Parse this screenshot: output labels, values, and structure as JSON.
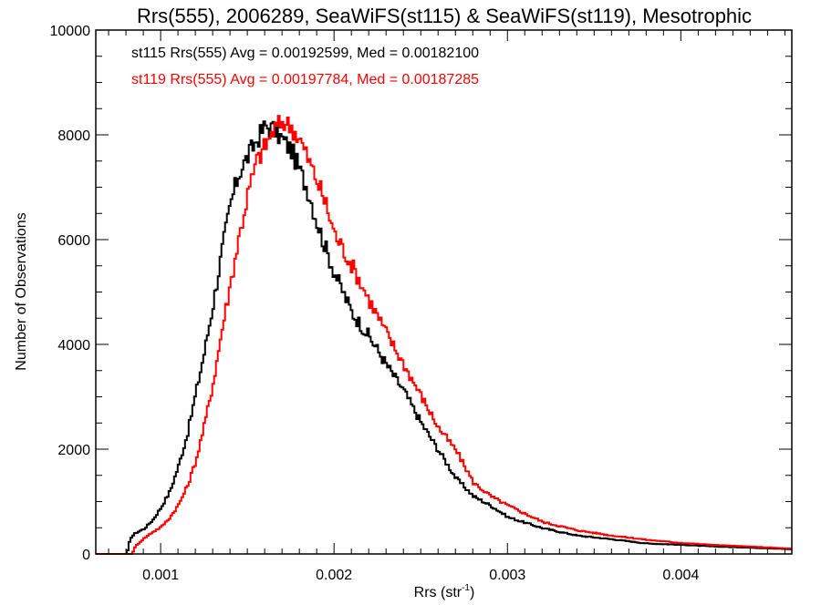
{
  "chart_data": {
    "type": "line",
    "style": "step-histogram",
    "title": "Rrs(555), 2006289, SeaWiFS(st115) & SeaWiFS(st119), Mesotrophic",
    "xlabel": "Rrs (str",
    "xlabel_sup": "-1",
    "xlabel_suffix": ")",
    "ylabel": "Number of Observations",
    "xlim": [
      0.000626,
      0.00464
    ],
    "ylim": [
      0,
      10000
    ],
    "xticks": [
      0.001,
      0.002,
      0.003,
      0.004
    ],
    "xtick_labels": [
      "0.001",
      "0.002",
      "0.003",
      "0.004"
    ],
    "yticks": [
      0,
      2000,
      4000,
      6000,
      8000,
      10000
    ],
    "ytick_labels": [
      "0",
      "2000",
      "4000",
      "6000",
      "8000",
      "10000"
    ],
    "x_minor_step": 0.0001,
    "y_minor_step": 500,
    "grid": false,
    "annotations": [
      {
        "text": "st115 Rrs(555) Avg = 0.00192599, Med = 0.00182100",
        "color": "#000000"
      },
      {
        "text": "st119 Rrs(555) Avg = 0.00197784, Med = 0.00187285",
        "color": "#ff0000"
      }
    ],
    "series": [
      {
        "name": "st115",
        "color": "#000000",
        "x": [
          0.00063,
          0.0008,
          0.00082,
          0.00085,
          0.0009,
          0.00095,
          0.001,
          0.00105,
          0.0011,
          0.00115,
          0.0012,
          0.00125,
          0.0013,
          0.00135,
          0.0014,
          0.00145,
          0.0015,
          0.00155,
          0.0016,
          0.00165,
          0.0017,
          0.00175,
          0.0018,
          0.00185,
          0.0019,
          0.00195,
          0.002,
          0.0021,
          0.0022,
          0.0023,
          0.0024,
          0.0025,
          0.0026,
          0.0027,
          0.0028,
          0.0029,
          0.003,
          0.0032,
          0.0034,
          0.0036,
          0.0038,
          0.004,
          0.0042,
          0.0044,
          0.00464
        ],
        "values": [
          0,
          0,
          300,
          400,
          480,
          650,
          900,
          1200,
          1700,
          2300,
          3100,
          3900,
          4800,
          5800,
          6700,
          7300,
          7600,
          7900,
          8170,
          8100,
          7900,
          7700,
          7300,
          6900,
          6300,
          5800,
          5350,
          4600,
          4140,
          3600,
          3100,
          2490,
          1970,
          1440,
          1100,
          920,
          700,
          490,
          350,
          280,
          200,
          175,
          140,
          120,
          90
        ]
      },
      {
        "name": "st119",
        "color": "#ff0000",
        "x": [
          0.00063,
          0.00083,
          0.00085,
          0.0009,
          0.00095,
          0.001,
          0.00105,
          0.0011,
          0.00115,
          0.0012,
          0.00125,
          0.0013,
          0.00135,
          0.0014,
          0.00145,
          0.0015,
          0.00155,
          0.0016,
          0.00165,
          0.0017,
          0.00175,
          0.0018,
          0.00185,
          0.0019,
          0.00195,
          0.002,
          0.0021,
          0.0022,
          0.0023,
          0.0024,
          0.0025,
          0.0026,
          0.0027,
          0.0028,
          0.0029,
          0.003,
          0.0032,
          0.0034,
          0.0036,
          0.0038,
          0.004,
          0.0042,
          0.0044,
          0.00464
        ],
        "values": [
          0,
          0,
          150,
          300,
          420,
          520,
          700,
          950,
          1300,
          1800,
          2500,
          3300,
          4300,
          5200,
          6100,
          6900,
          7500,
          7800,
          8100,
          8260,
          8150,
          7900,
          7500,
          7100,
          6650,
          6100,
          5500,
          4830,
          4200,
          3600,
          3000,
          2400,
          1970,
          1360,
          1100,
          920,
          610,
          450,
          350,
          270,
          210,
          170,
          140,
          100
        ]
      }
    ]
  }
}
